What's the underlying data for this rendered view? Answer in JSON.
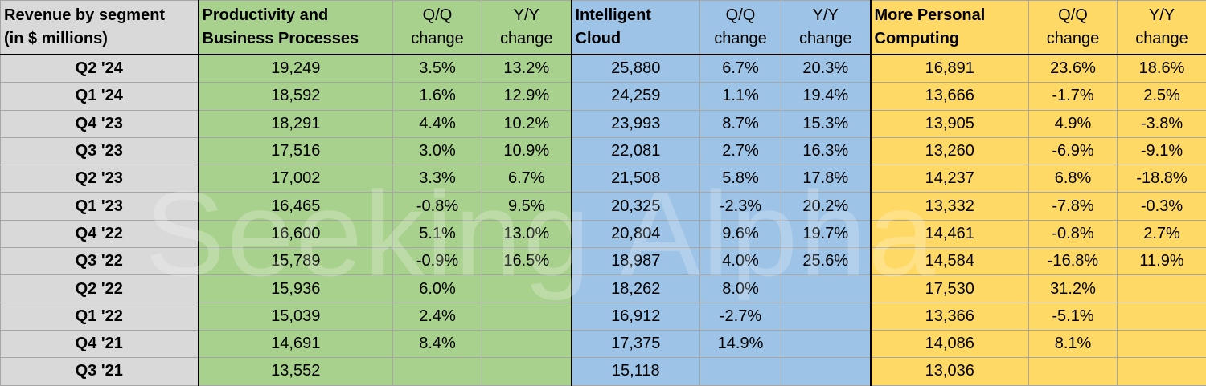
{
  "watermark": "Seeking Alpha",
  "chart_data": {
    "type": "table",
    "corner_label": [
      "Revenue by segment",
      "(in $ millions)"
    ],
    "segments": [
      {
        "name": [
          "Productivity and",
          "Business Processes"
        ],
        "color": "#a9d18e"
      },
      {
        "name": [
          "Intelligent",
          "Cloud"
        ],
        "color": "#9dc3e6"
      },
      {
        "name": [
          "More Personal",
          "Computing"
        ],
        "color": "#ffd966"
      }
    ],
    "change_headers": {
      "qq": [
        "Q/Q",
        "change"
      ],
      "yy": [
        "Y/Y",
        "change"
      ]
    },
    "rows": [
      {
        "quarter": "Q2 '24",
        "cells": [
          "19,249",
          "3.5%",
          "13.2%",
          "25,880",
          "6.7%",
          "20.3%",
          "16,891",
          "23.6%",
          "18.6%"
        ]
      },
      {
        "quarter": "Q1 '24",
        "cells": [
          "18,592",
          "1.6%",
          "12.9%",
          "24,259",
          "1.1%",
          "19.4%",
          "13,666",
          "-1.7%",
          "2.5%"
        ]
      },
      {
        "quarter": "Q4 '23",
        "cells": [
          "18,291",
          "4.4%",
          "10.2%",
          "23,993",
          "8.7%",
          "15.3%",
          "13,905",
          "4.9%",
          "-3.8%"
        ]
      },
      {
        "quarter": "Q3 '23",
        "cells": [
          "17,516",
          "3.0%",
          "10.9%",
          "22,081",
          "2.7%",
          "16.3%",
          "13,260",
          "-6.9%",
          "-9.1%"
        ]
      },
      {
        "quarter": "Q2 '23",
        "cells": [
          "17,002",
          "3.3%",
          "6.7%",
          "21,508",
          "5.8%",
          "17.8%",
          "14,237",
          "6.8%",
          "-18.8%"
        ]
      },
      {
        "quarter": "Q1 '23",
        "cells": [
          "16,465",
          "-0.8%",
          "9.5%",
          "20,325",
          "-2.3%",
          "20.2%",
          "13,332",
          "-7.8%",
          "-0.3%"
        ]
      },
      {
        "quarter": "Q4 '22",
        "cells": [
          "16,600",
          "5.1%",
          "13.0%",
          "20,804",
          "9.6%",
          "19.7%",
          "14,461",
          "-0.8%",
          "2.7%"
        ]
      },
      {
        "quarter": "Q3 '22",
        "cells": [
          "15,789",
          "-0.9%",
          "16.5%",
          "18,987",
          "4.0%",
          "25.6%",
          "14,584",
          "-16.8%",
          "11.9%"
        ]
      },
      {
        "quarter": "Q2 '22",
        "cells": [
          "15,936",
          "6.0%",
          "",
          "18,262",
          "8.0%",
          "",
          "17,530",
          "31.2%",
          ""
        ]
      },
      {
        "quarter": "Q1 '22",
        "cells": [
          "15,039",
          "2.4%",
          "",
          "16,912",
          "-2.7%",
          "",
          "13,366",
          "-5.1%",
          ""
        ]
      },
      {
        "quarter": "Q4 '21",
        "cells": [
          "14,691",
          "8.4%",
          "",
          "17,375",
          "14.9%",
          "",
          "14,086",
          "8.1%",
          ""
        ]
      },
      {
        "quarter": "Q3 '21",
        "cells": [
          "13,552",
          "",
          "",
          "15,118",
          "",
          "",
          "13,036",
          "",
          ""
        ]
      }
    ]
  }
}
